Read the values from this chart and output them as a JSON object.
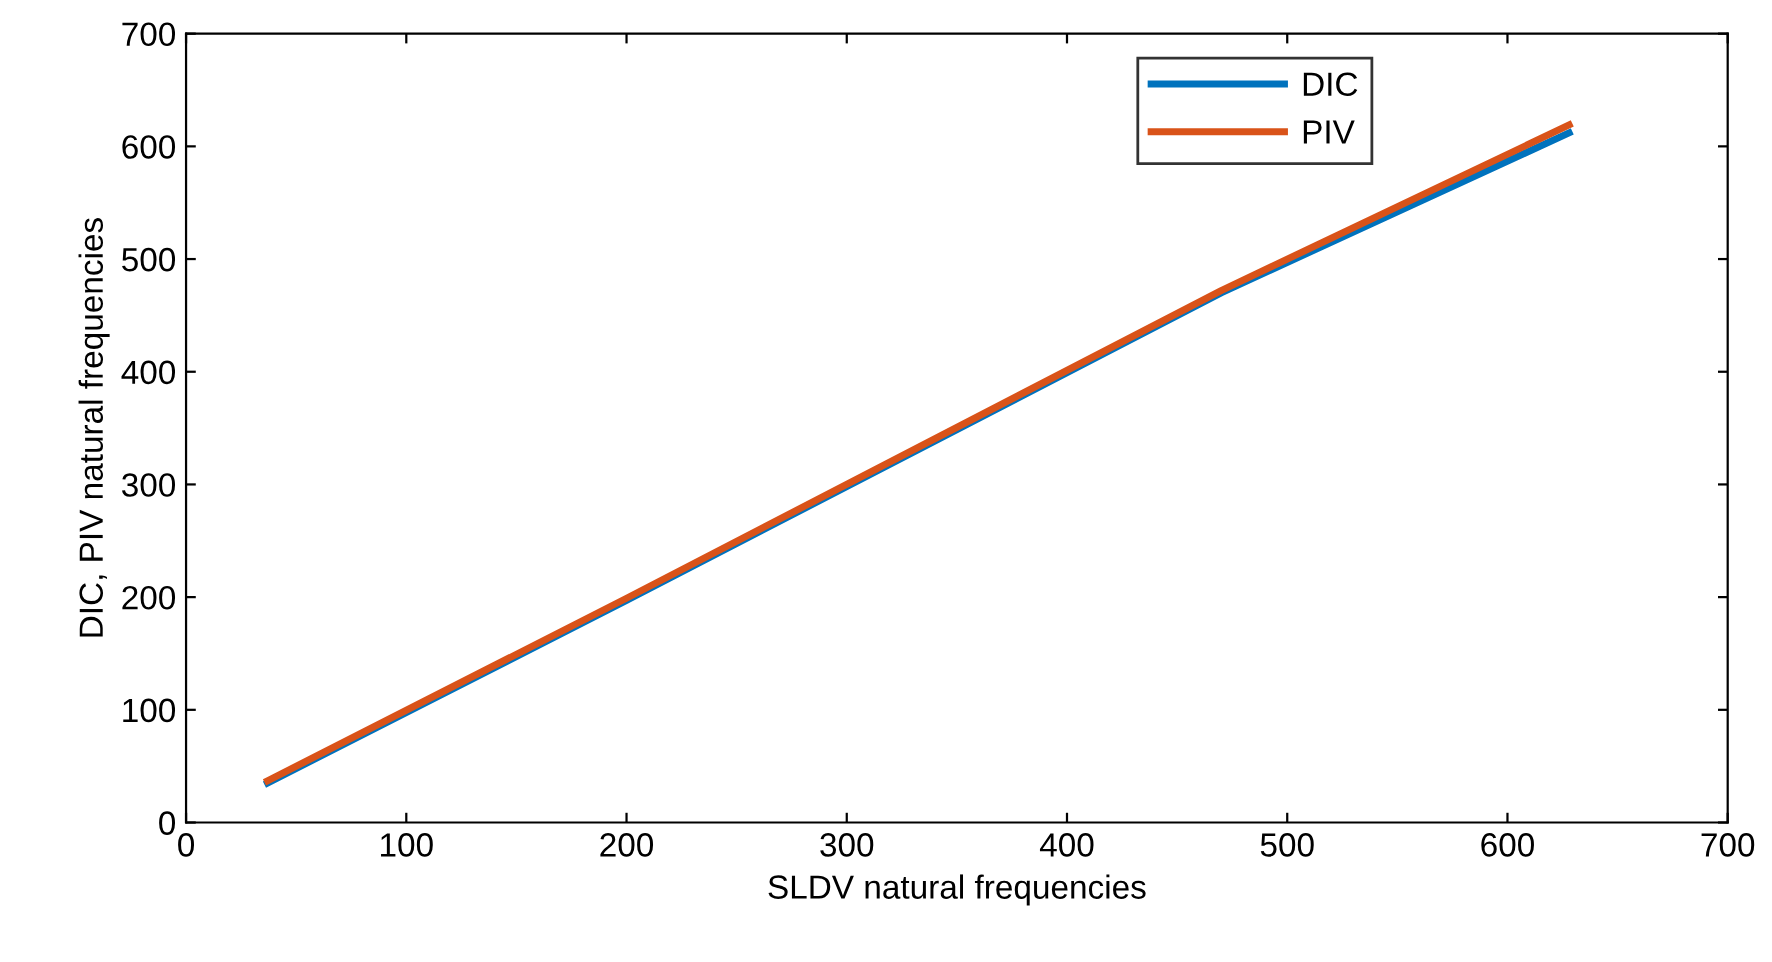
{
  "chart_data": {
    "type": "line",
    "xlabel": "SLDV natural frequencies",
    "ylabel": "DIC, PIV natural frequencies",
    "xlim": [
      0,
      700
    ],
    "xticks": [
      0,
      100,
      200,
      300,
      400,
      500,
      600,
      700
    ],
    "ylim": [
      0,
      700
    ],
    "yticks": [
      0,
      100,
      200,
      300,
      400,
      500,
      600,
      700
    ],
    "legend": "top right",
    "grid": false,
    "marker": "none",
    "line_style": "solid",
    "series": [
      {
        "name": "DIC",
        "color": "#0072bd",
        "x": [
          37,
          200,
          470,
          628
        ],
        "values": [
          35,
          197,
          470,
          612
        ]
      },
      {
        "name": "PIV",
        "color": "#d95319",
        "x": [
          37,
          200,
          470,
          628
        ],
        "values": [
          37,
          199,
          472,
          619
        ]
      }
    ]
  }
}
